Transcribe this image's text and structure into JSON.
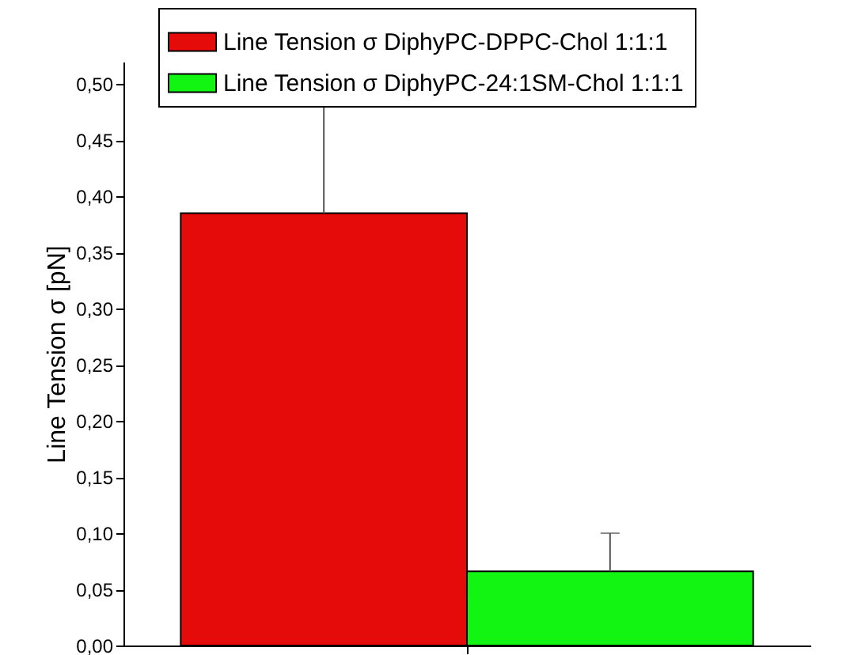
{
  "chart_data": {
    "type": "bar",
    "ylabel": "Line Tension σ [pN]",
    "categories": [
      null
    ],
    "series": [
      {
        "name": "Line Tension σ DiphyPC-DPPC-Chol 1:1:1",
        "color": "#e60b0b",
        "values": [
          0.385
        ],
        "errors": [
          [
            0.385,
            0.48
          ]
        ]
      },
      {
        "name": "Line Tension σ DiphyPC-24:1SM-Chol 1:1:1",
        "color": "#12f412",
        "values": [
          0.066
        ],
        "errors": [
          [
            0.066,
            0.1
          ]
        ]
      }
    ],
    "ylim": [
      0,
      0.52
    ],
    "yticks": [
      {
        "value": 0,
        "label": "0,00"
      },
      {
        "value": 0.05,
        "label": "0,05"
      },
      {
        "value": 0.1,
        "label": "0,10"
      },
      {
        "value": 0.15,
        "label": "0,15"
      },
      {
        "value": 0.2,
        "label": "0,20"
      },
      {
        "value": 0.25,
        "label": "0,25"
      },
      {
        "value": 0.3,
        "label": "0,30"
      },
      {
        "value": 0.35,
        "label": "0,35"
      },
      {
        "value": 0.4,
        "label": "0,40"
      },
      {
        "value": 0.45,
        "label": "0,45"
      },
      {
        "value": 0.5,
        "label": "0,50"
      }
    ],
    "legend": "top right",
    "grid": false
  }
}
